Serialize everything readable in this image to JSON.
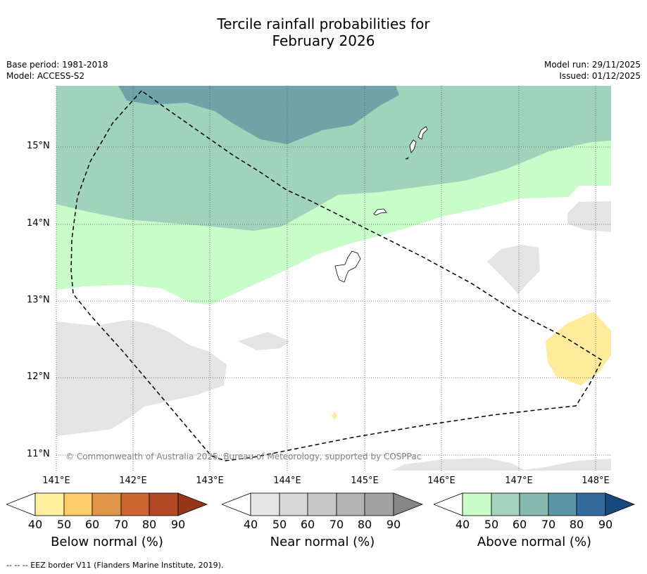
{
  "title": {
    "line1": "Tercile rainfall probabilities for",
    "line2": "February 2026"
  },
  "meta": {
    "base_period": "Base period: 1981-2018",
    "model": "Model: ACCESS-S2",
    "model_run": "Model run: 29/11/2025",
    "issued": "Issued: 01/12/2025"
  },
  "map": {
    "lat_labels": [
      "15°N",
      "14°N",
      "13°N",
      "12°N",
      "11°N"
    ],
    "lon_labels": [
      "141°E",
      "142°E",
      "143°E",
      "144°E",
      "145°E",
      "146°E",
      "147°E",
      "148°E"
    ],
    "copyright": "© Commonwealth of Australia 2025, Bureau of Meteorology, supported by COSPPac",
    "colors": {
      "above_40_50": "#c8fcc8",
      "above_50_60": "#a0d3bc",
      "above_60_70": "#6ea4a8",
      "near_40_50": "#e4e4e4",
      "below_40_50": "#ffeb9c"
    }
  },
  "colorbars": [
    {
      "title": "Below normal (%)",
      "ticks": [
        "40",
        "50",
        "60",
        "70",
        "80",
        "90"
      ],
      "colors": [
        "#ffffff",
        "#fff09e",
        "#fdcb67",
        "#e19548",
        "#ce6632",
        "#b44a25",
        "#983619"
      ]
    },
    {
      "title": "Near normal (%)",
      "ticks": [
        "40",
        "50",
        "60",
        "70",
        "80",
        "90"
      ],
      "colors": [
        "#ffffff",
        "#e5e5e5",
        "#d7d7d7",
        "#c7c7c7",
        "#b4b4b4",
        "#a2a2a2",
        "#878787"
      ]
    },
    {
      "title": "Above normal (%)",
      "ticks": [
        "40",
        "50",
        "60",
        "70",
        "80",
        "90"
      ],
      "colors": [
        "#ffffff",
        "#c8fcc8",
        "#a3d3bb",
        "#86b9ae",
        "#5996a4",
        "#336a9c",
        "#17497f"
      ]
    }
  ],
  "footnote": "--  --  -- EEZ border V11 (Flanders Marine Institute, 2019)."
}
